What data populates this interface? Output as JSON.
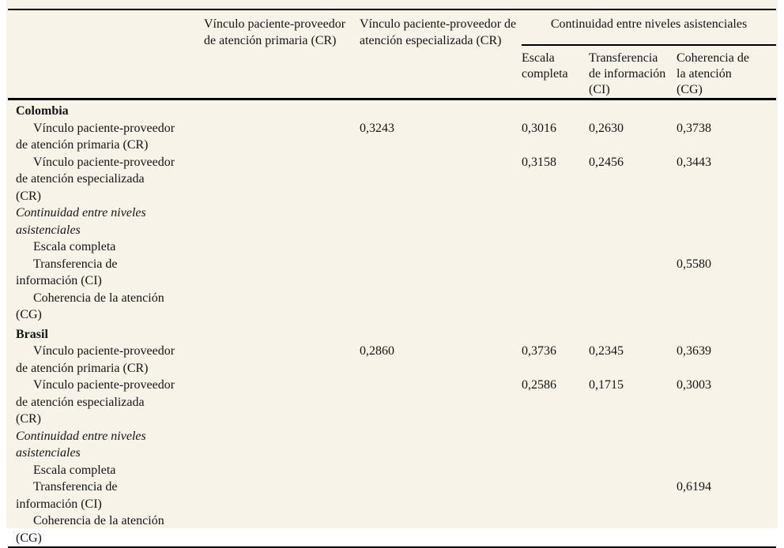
{
  "page": {
    "background_color": "#f7f3e9",
    "line_color": "#000000"
  },
  "table": {
    "header": {
      "col_row_label": "",
      "col_primary": "Vínculo paciente-proveedor\nde atención primaria (CR)",
      "col_specialized": "Vínculo paciente-proveedor de\natención especializada (CR)",
      "spanner": "Continuidad entre niveles asistenciales",
      "sub_full_scale": "Escala\ncompleta",
      "sub_info_transfer": "Transferencia\nde información\n(CI)",
      "sub_care_coherence": "Coherencia de\nla atención\n(CG)"
    },
    "sections": [
      {
        "country": "Colombia",
        "rows": [
          {
            "label": "Vínculo paciente-proveedor\nde atención primaria (CR)",
            "style": "indent",
            "values": [
              "",
              "0,3243",
              "0,3016",
              "0,2630",
              "0,3738"
            ]
          },
          {
            "label": "Vínculo paciente-proveedor\nde atención especializada\n(CR)",
            "style": "indent",
            "values": [
              "",
              "",
              "0,3158",
              "0,2456",
              "0,3443"
            ]
          },
          {
            "label": "Continuidad entre niveles asistenciales",
            "style": "italic",
            "values": [
              "",
              "",
              "",
              "",
              ""
            ]
          },
          {
            "label": "Escala completa",
            "style": "indent",
            "values": [
              "",
              "",
              "",
              "",
              ""
            ]
          },
          {
            "label": "Transferencia de\ninformación (CI)",
            "style": "indent",
            "values": [
              "",
              "",
              "",
              "",
              "0,5580"
            ]
          },
          {
            "label": "Coherencia de la atención\n(CG)",
            "style": "indent",
            "values": [
              "",
              "",
              "",
              "",
              ""
            ]
          }
        ]
      },
      {
        "country": "Brasil",
        "rows": [
          {
            "label": "Vínculo paciente-proveedor\nde atención primaria (CR)",
            "style": "indent",
            "values": [
              "",
              "0,2860",
              "0,3736",
              "0,2345",
              "0,3639"
            ]
          },
          {
            "label": "Vínculo paciente-proveedor\nde atención especializada\n(CR)",
            "style": "indent",
            "values": [
              "",
              "",
              "0,2586",
              "0,1715",
              "0,3003"
            ]
          },
          {
            "label": "Continuidad entre niveles asistenciales",
            "style": "italic",
            "values": [
              "",
              "",
              "",
              "",
              ""
            ]
          },
          {
            "label": "Escala completa",
            "style": "indent",
            "values": [
              "",
              "",
              "",
              "",
              ""
            ]
          },
          {
            "label": "Transferencia de\ninformación (CI)",
            "style": "indent",
            "values": [
              "",
              "",
              "",
              "",
              "0,6194"
            ]
          },
          {
            "label": "Coherencia de la atención\n(CG)",
            "style": "indent",
            "values": [
              "",
              "",
              "",
              "",
              ""
            ]
          }
        ]
      }
    ]
  }
}
